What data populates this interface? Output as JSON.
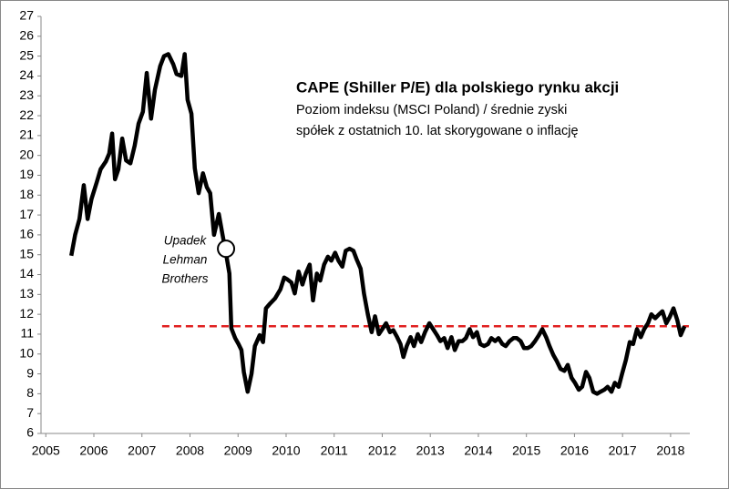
{
  "chart_data": {
    "type": "line",
    "title": "CAPE (Shiller P/E) dla polskiego rynku akcji",
    "subtitle": [
      "Poziom indeksu (MSCI Poland) / średnie zyski",
      "spółek z ostatnich 10. lat skorygowane o inflację"
    ],
    "color": "#000000",
    "x": [
      2005.53,
      2005.61,
      2005.7,
      2005.79,
      2005.87,
      2005.95,
      2006.06,
      2006.14,
      2006.25,
      2006.32,
      2006.38,
      2006.44,
      2006.51,
      2006.59,
      2006.67,
      2006.76,
      2006.85,
      2006.93,
      2007.02,
      2007.1,
      2007.19,
      2007.27,
      2007.38,
      2007.46,
      2007.55,
      2007.65,
      2007.72,
      2007.82,
      2007.89,
      2007.95,
      2008.03,
      2008.1,
      2008.18,
      2008.27,
      2008.35,
      2008.42,
      2008.5,
      2008.6,
      2008.67,
      2008.75,
      2008.82,
      2008.86,
      2008.94,
      2009.01,
      2009.07,
      2009.12,
      2009.2,
      2009.28,
      2009.35,
      2009.45,
      2009.52,
      2009.58,
      2009.67,
      2009.77,
      2009.88,
      2009.96,
      2010.03,
      2010.11,
      2010.18,
      2010.26,
      2010.34,
      2010.41,
      2010.49,
      2010.56,
      2010.64,
      2010.71,
      2010.79,
      2010.87,
      2010.94,
      2011.02,
      2011.09,
      2011.17,
      2011.24,
      2011.32,
      2011.4,
      2011.47,
      2011.55,
      2011.62,
      2011.7,
      2011.78,
      2011.85,
      2011.93,
      2012.0,
      2012.08,
      2012.16,
      2012.23,
      2012.31,
      2012.38,
      2012.44,
      2012.51,
      2012.59,
      2012.66,
      2012.74,
      2012.81,
      2012.89,
      2012.98,
      2013.06,
      2013.14,
      2013.21,
      2013.29,
      2013.36,
      2013.44,
      2013.51,
      2013.59,
      2013.67,
      2013.74,
      2013.82,
      2013.89,
      2013.97,
      2014.04,
      2014.12,
      2014.2,
      2014.27,
      2014.35,
      2014.42,
      2014.5,
      2014.57,
      2014.65,
      2014.73,
      2014.8,
      2014.88,
      2014.95,
      2015.03,
      2015.1,
      2015.18,
      2015.26,
      2015.33,
      2015.41,
      2015.48,
      2015.56,
      2015.63,
      2015.71,
      2015.79,
      2015.86,
      2015.94,
      2016.01,
      2016.09,
      2016.16,
      2016.24,
      2016.31,
      2016.39,
      2016.47,
      2016.54,
      2016.62,
      2016.69,
      2016.77,
      2016.84,
      2016.92,
      2016.99,
      2017.07,
      2017.15,
      2017.22,
      2017.3,
      2017.38,
      2017.45,
      2017.53,
      2017.6,
      2017.68,
      2017.76,
      2017.83,
      2017.91,
      2017.98,
      2018.06,
      2018.14,
      2018.21,
      2018.29
    ],
    "values": [
      14.95,
      16.0,
      16.8,
      18.5,
      16.8,
      17.8,
      18.65,
      19.3,
      19.7,
      20.1,
      21.1,
      18.8,
      19.3,
      20.85,
      19.75,
      19.6,
      20.5,
      21.6,
      22.2,
      24.15,
      21.85,
      23.3,
      24.5,
      25.0,
      25.1,
      24.6,
      24.1,
      24.0,
      25.1,
      22.8,
      22.1,
      19.35,
      18.1,
      19.1,
      18.4,
      18.1,
      16.0,
      17.05,
      16.1,
      15.05,
      14.05,
      11.3,
      10.8,
      10.5,
      10.2,
      9.1,
      8.1,
      9.0,
      10.4,
      10.95,
      10.6,
      12.3,
      12.55,
      12.8,
      13.25,
      13.85,
      13.75,
      13.6,
      13.05,
      14.15,
      13.5,
      14.05,
      14.5,
      12.7,
      14.05,
      13.7,
      14.5,
      14.9,
      14.7,
      15.1,
      14.7,
      14.4,
      15.2,
      15.3,
      15.2,
      14.75,
      14.3,
      13.05,
      12.0,
      11.1,
      11.9,
      11.0,
      11.25,
      11.55,
      11.1,
      11.2,
      10.85,
      10.5,
      9.85,
      10.4,
      10.85,
      10.4,
      11.0,
      10.6,
      11.1,
      11.55,
      11.25,
      10.95,
      10.65,
      10.8,
      10.3,
      10.85,
      10.2,
      10.65,
      10.65,
      10.8,
      11.25,
      10.85,
      11.1,
      10.5,
      10.4,
      10.5,
      10.8,
      10.65,
      10.8,
      10.5,
      10.4,
      10.65,
      10.8,
      10.8,
      10.65,
      10.3,
      10.3,
      10.4,
      10.65,
      10.95,
      11.25,
      10.85,
      10.4,
      9.95,
      9.65,
      9.25,
      9.15,
      9.45,
      8.8,
      8.55,
      8.2,
      8.35,
      9.1,
      8.8,
      8.1,
      8.0,
      8.1,
      8.2,
      8.35,
      8.1,
      8.55,
      8.35,
      9.0,
      9.7,
      10.6,
      10.5,
      11.25,
      10.85,
      11.25,
      11.55,
      12.0,
      11.8,
      12.0,
      12.15,
      11.55,
      11.85,
      12.3,
      11.7,
      10.95,
      11.4
    ],
    "xlim": [
      2004.9,
      2018.4
    ],
    "xticks": [
      2005,
      2006,
      2007,
      2008,
      2009,
      2010,
      2011,
      2012,
      2013,
      2014,
      2015,
      2016,
      2017,
      2018
    ],
    "ylim": [
      6,
      27
    ],
    "yticks": [
      6,
      7,
      8,
      9,
      10,
      11,
      12,
      13,
      14,
      15,
      16,
      17,
      18,
      19,
      20,
      21,
      22,
      23,
      24,
      25,
      26,
      27
    ],
    "grid": false,
    "reference_line": {
      "value": 11.4,
      "x": [
        2007.42,
        2018.38
      ],
      "color": "#e02020"
    },
    "annotation": {
      "lines": [
        "Upadek",
        "Lehman",
        "Brothers"
      ],
      "x": 2008.75,
      "y": 15.3
    }
  }
}
